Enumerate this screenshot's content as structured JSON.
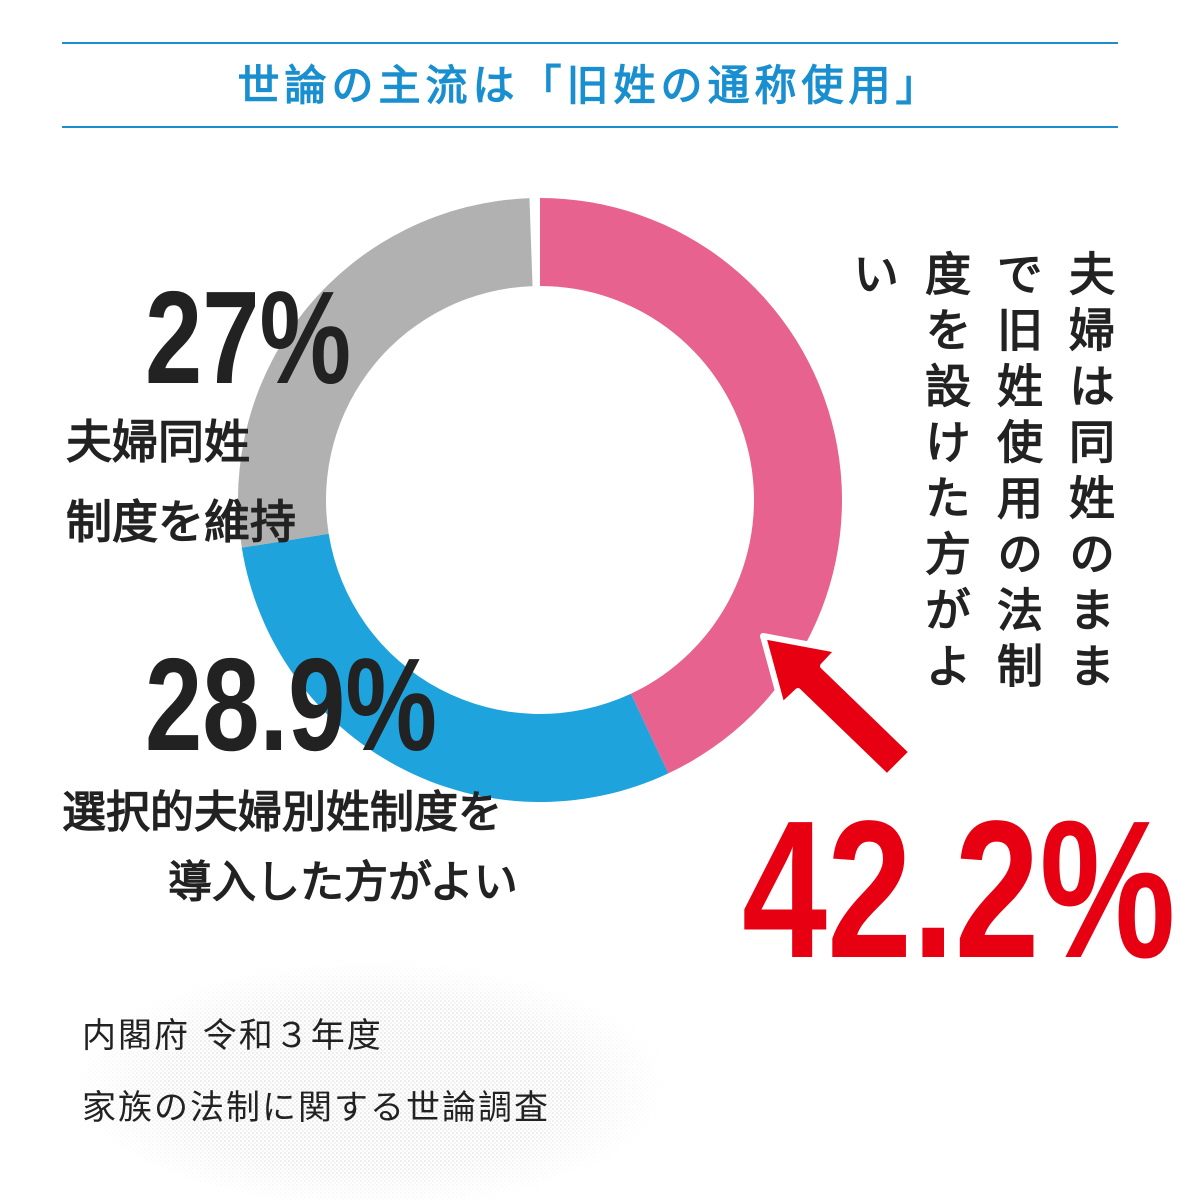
{
  "title": "世論の主流は「旧姓の通称使用」",
  "chart_data": {
    "type": "pie",
    "style": "donut",
    "start": "top, clockwise",
    "slices": [
      {
        "label": "夫婦は同姓のままで旧姓使用の法制度を設けた方がよい",
        "value": 42.2,
        "display": "42.2%",
        "color": "#e8628f"
      },
      {
        "label": "選択的夫婦別姓制度を導入した方がよい",
        "value": 28.9,
        "display": "28.9%",
        "color": "#1fa3dd"
      },
      {
        "label": "夫婦同姓制度を維持",
        "value": 27,
        "display": "27%",
        "color": "#b1b1b1"
      }
    ]
  },
  "labels": {
    "gray_pct": "27%",
    "gray_line1": "夫婦同姓",
    "gray_line2": "制度を維持",
    "blue_pct": "28.9%",
    "blue_line1": "選択的夫婦別姓制度を",
    "blue_line2": "導入した方がよい",
    "pink_pct": "42.2%",
    "pink_vertical": "夫婦は同姓のままで旧姓使用の法制度を設けた方がよい"
  },
  "accent_colors": {
    "title": "#1a8fd0",
    "arrow": "#e60012",
    "pink_pct": "#e60012"
  },
  "source": {
    "line1": "内閣府 令和３年度",
    "line2": "家族の法制に関する世論調査"
  }
}
